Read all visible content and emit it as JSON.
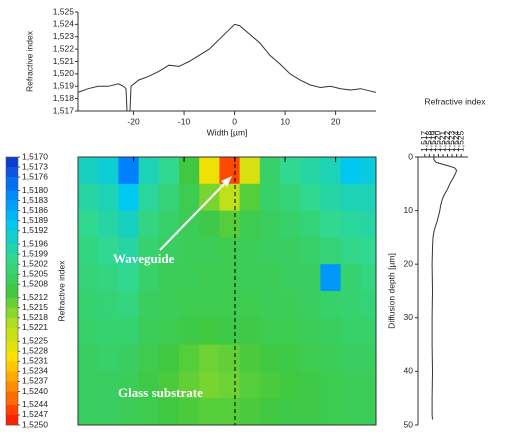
{
  "chart_data": [
    {
      "type": "line",
      "x_label": "Width [µm]",
      "y_label": "Refractive index",
      "color": "#333333",
      "x": [
        -31,
        -29,
        -27,
        -25,
        -23,
        -22,
        -21.5,
        -21.3,
        -20.7,
        -20.5,
        -19,
        -17,
        -15,
        -13,
        -11,
        -9,
        -7,
        -5,
        -3,
        -1,
        0,
        1,
        3,
        5,
        7,
        9,
        11,
        13,
        15,
        17,
        19,
        21,
        23,
        25,
        27,
        28
      ],
      "values": [
        1.5185,
        1.5188,
        1.519,
        1.519,
        1.5192,
        1.519,
        1.5188,
        1.517,
        1.517,
        1.519,
        1.5195,
        1.5198,
        1.5202,
        1.5207,
        1.5206,
        1.521,
        1.5215,
        1.522,
        1.5228,
        1.5236,
        1.524,
        1.5239,
        1.5232,
        1.5225,
        1.5215,
        1.5208,
        1.52,
        1.5195,
        1.5191,
        1.5189,
        1.519,
        1.5188,
        1.5187,
        1.5188,
        1.5186,
        1.5185
      ],
      "xlim": [
        -31,
        28
      ],
      "xticks": [
        -20,
        -10,
        0,
        10,
        20
      ],
      "ylim": [
        1.517,
        1.525
      ],
      "yticks": [
        {
          "value": 1.517,
          "label": "1,517"
        },
        {
          "value": 1.518,
          "label": "1,518"
        },
        {
          "value": 1.519,
          "label": "1,519"
        },
        {
          "value": 1.52,
          "label": "1,520"
        },
        {
          "value": 1.521,
          "label": "1,521"
        },
        {
          "value": 1.522,
          "label": "1,522"
        },
        {
          "value": 1.523,
          "label": "1,523"
        },
        {
          "value": 1.524,
          "label": "1,524"
        },
        {
          "value": 1.525,
          "label": "1,525"
        }
      ]
    },
    {
      "type": "heatmap",
      "colorbar_label": "Refractive index",
      "annotations": [
        "Waveguide",
        "Glass substrate"
      ],
      "x": [
        -29,
        -25,
        -21,
        -17,
        -13,
        -9,
        -5,
        -1,
        3,
        7,
        11,
        15,
        19,
        23,
        27
      ],
      "y": [
        2.5,
        7.5,
        12.5,
        17.5,
        22.5,
        27.5,
        32.5,
        37.5,
        42.5,
        47.5
      ],
      "z": [
        [
          1.5195,
          1.5193,
          1.518,
          1.5196,
          1.52,
          1.521,
          1.5228,
          1.5245,
          1.5225,
          1.5205,
          1.52,
          1.5198,
          1.5196,
          1.519,
          1.5192
        ],
        [
          1.5198,
          1.5196,
          1.519,
          1.5199,
          1.5203,
          1.5208,
          1.5215,
          1.5222,
          1.5212,
          1.5205,
          1.5203,
          1.52,
          1.5198,
          1.5196,
          1.5196
        ],
        [
          1.52,
          1.5198,
          1.5195,
          1.5202,
          1.5205,
          1.5207,
          1.5209,
          1.5212,
          1.5208,
          1.5206,
          1.5205,
          1.5203,
          1.52,
          1.5199,
          1.5198
        ],
        [
          1.5202,
          1.52,
          1.5198,
          1.5204,
          1.5206,
          1.5207,
          1.5207,
          1.5208,
          1.5207,
          1.5206,
          1.5206,
          1.5205,
          1.5203,
          1.5201,
          1.52
        ],
        [
          1.5203,
          1.5202,
          1.52,
          1.5205,
          1.5207,
          1.5207,
          1.5208,
          1.5208,
          1.5207,
          1.5207,
          1.5206,
          1.5206,
          1.5183,
          1.5204,
          1.5202
        ],
        [
          1.5204,
          1.5203,
          1.5202,
          1.5206,
          1.5207,
          1.5208,
          1.5208,
          1.5208,
          1.5208,
          1.5207,
          1.5207,
          1.5206,
          1.5205,
          1.5204,
          1.5203
        ],
        [
          1.5205,
          1.5204,
          1.5204,
          1.5207,
          1.5208,
          1.5209,
          1.521,
          1.5209,
          1.5209,
          1.5208,
          1.5208,
          1.5207,
          1.5206,
          1.5205,
          1.5205
        ],
        [
          1.5206,
          1.5205,
          1.5206,
          1.5208,
          1.521,
          1.5212,
          1.5214,
          1.5213,
          1.5211,
          1.521,
          1.5209,
          1.5208,
          1.5207,
          1.5206,
          1.5206
        ],
        [
          1.5206,
          1.5206,
          1.5207,
          1.5209,
          1.5211,
          1.5213,
          1.5215,
          1.5214,
          1.5212,
          1.5211,
          1.521,
          1.5209,
          1.5208,
          1.5207,
          1.5207
        ],
        [
          1.5206,
          1.5206,
          1.5207,
          1.5208,
          1.521,
          1.5211,
          1.5212,
          1.5212,
          1.5211,
          1.521,
          1.5209,
          1.5209,
          1.5208,
          1.5207,
          1.5207
        ]
      ],
      "xlim": [
        -31,
        28
      ],
      "xticks": [
        -20,
        -10,
        0,
        10,
        20
      ],
      "ylim": [
        0,
        50
      ],
      "zlim": [
        1.517,
        1.525
      ],
      "colorscale": [
        "#1030c8",
        "#0080ff",
        "#00c8f0",
        "#30d890",
        "#40c840",
        "#b0e020",
        "#ffe000",
        "#ff8000",
        "#ff1000"
      ],
      "colorbar_ticks": [
        {
          "value": 1.517,
          "label": "1,5170"
        },
        {
          "value": 1.5173,
          "label": "1,5173"
        },
        {
          "value": 1.5176,
          "label": "1,5176"
        },
        {
          "value": 1.518,
          "label": "1,5180"
        },
        {
          "value": 1.5183,
          "label": "1,5183"
        },
        {
          "value": 1.5186,
          "label": "1,5186"
        },
        {
          "value": 1.5189,
          "label": "1,5189"
        },
        {
          "value": 1.5192,
          "label": "1,5192"
        },
        {
          "value": 1.5196,
          "label": "1,5196"
        },
        {
          "value": 1.5199,
          "label": "1,5199"
        },
        {
          "value": 1.5202,
          "label": "1,5202"
        },
        {
          "value": 1.5205,
          "label": "1,5205"
        },
        {
          "value": 1.5208,
          "label": "1,5208"
        },
        {
          "value": 1.5212,
          "label": "1,5212"
        },
        {
          "value": 1.5215,
          "label": "1,5215"
        },
        {
          "value": 1.5218,
          "label": "1,5218"
        },
        {
          "value": 1.5221,
          "label": "1,5221"
        },
        {
          "value": 1.5225,
          "label": "1,5225"
        },
        {
          "value": 1.5228,
          "label": "1,5228"
        },
        {
          "value": 1.5231,
          "label": "1,5231"
        },
        {
          "value": 1.5234,
          "label": "1,5234"
        },
        {
          "value": 1.5237,
          "label": "1,5237"
        },
        {
          "value": 1.524,
          "label": "1,5240"
        },
        {
          "value": 1.5244,
          "label": "1,5244"
        },
        {
          "value": 1.5247,
          "label": "1,5247"
        },
        {
          "value": 1.525,
          "label": "1,5250"
        }
      ]
    },
    {
      "type": "line",
      "orientation": "vertical",
      "x_label": "Diffusion depth [µm]",
      "y_label": "Refractive index",
      "color": "#333333",
      "x": [
        0,
        0.5,
        1,
        1.5,
        2,
        2.5,
        3,
        4,
        5,
        6,
        7,
        8,
        9,
        10,
        11,
        12,
        13,
        14,
        15,
        17,
        20,
        25,
        30,
        35,
        40,
        45,
        48,
        49
      ],
      "values": [
        1.519,
        1.519,
        1.5195,
        1.5215,
        1.5235,
        1.524,
        1.5238,
        1.5232,
        1.5225,
        1.522,
        1.5213,
        1.5208,
        1.5205,
        1.5203,
        1.52,
        1.5197,
        1.5193,
        1.519,
        1.5188,
        1.5187,
        1.5186,
        1.5187,
        1.5186,
        1.5186,
        1.5187,
        1.5186,
        1.5186,
        1.5187
      ],
      "xlim": [
        0,
        50
      ],
      "xticks": [
        0,
        10,
        20,
        30,
        40,
        50
      ],
      "ylim": [
        1.5155,
        1.5265
      ],
      "yticks": [
        {
          "value": 1.517,
          "label": "1,517"
        },
        {
          "value": 1.518,
          "label": "1,518"
        },
        {
          "value": 1.519,
          "label": "1,519"
        },
        {
          "value": 1.52,
          "label": "1,520"
        },
        {
          "value": 1.521,
          "label": "1,521"
        },
        {
          "value": 1.522,
          "label": "1,522"
        },
        {
          "value": 1.523,
          "label": "1,523"
        },
        {
          "value": 1.524,
          "label": "1,524"
        },
        {
          "value": 1.525,
          "label": "1,525"
        }
      ]
    }
  ]
}
